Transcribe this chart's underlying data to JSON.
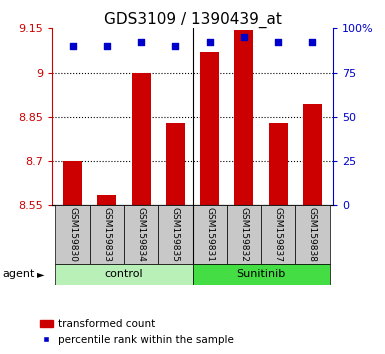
{
  "title": "GDS3109 / 1390439_at",
  "samples": [
    "GSM159830",
    "GSM159833",
    "GSM159834",
    "GSM159835",
    "GSM159831",
    "GSM159832",
    "GSM159837",
    "GSM159838"
  ],
  "transformed_counts": [
    8.7,
    8.585,
    9.0,
    8.83,
    9.07,
    9.145,
    8.83,
    8.895
  ],
  "percentile_ranks": [
    90,
    90,
    92,
    90,
    92,
    95,
    92,
    92
  ],
  "group_colors": [
    "#b8f0b8",
    "#44dd44"
  ],
  "ylim_left": [
    8.55,
    9.15
  ],
  "ylim_right": [
    0,
    100
  ],
  "yticks_left": [
    8.55,
    8.7,
    8.85,
    9.0,
    9.15
  ],
  "ytick_labels_left": [
    "8.55",
    "8.7",
    "8.85",
    "9",
    "9.15"
  ],
  "yticks_right": [
    0,
    25,
    50,
    75,
    100
  ],
  "ytick_labels_right": [
    "0",
    "25",
    "50",
    "75",
    "100%"
  ],
  "bar_color": "#cc0000",
  "dot_color": "#0000cc",
  "bar_bottom": 8.55,
  "background_color": "#ffffff",
  "label_area_color": "#c8c8c8",
  "title_fontsize": 11,
  "tick_fontsize": 8,
  "legend_fontsize": 7.5
}
